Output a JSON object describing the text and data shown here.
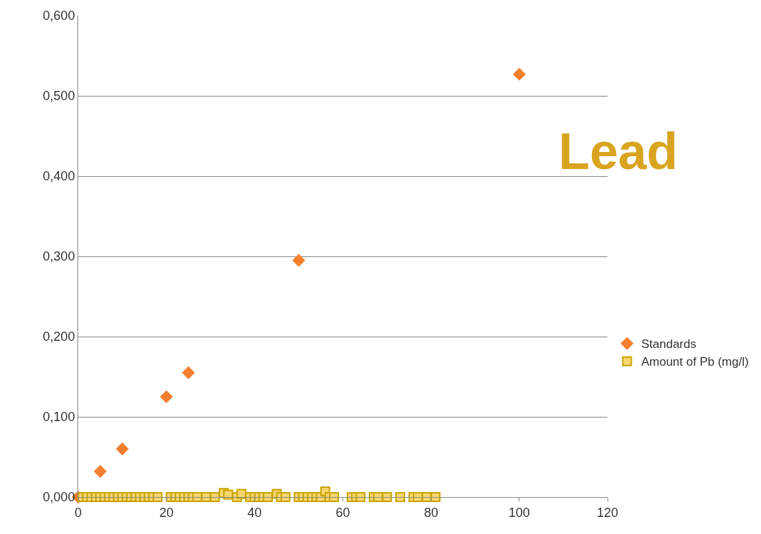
{
  "chart_data": {
    "type": "scatter",
    "annotations": [
      "Lead"
    ],
    "series": [
      {
        "name": "Standards",
        "color": "#f47f2c",
        "marker": "diamond",
        "x": [
          0,
          5,
          10,
          20,
          25,
          50,
          100
        ],
        "values": [
          0,
          0.032,
          0.06,
          0.125,
          0.155,
          0.295,
          0.527
        ]
      },
      {
        "name": "Amount of Pb (mg/l)",
        "color": "#f5d770",
        "marker": "square",
        "x": [
          1,
          2,
          3,
          4,
          5,
          6,
          7,
          8,
          9,
          10,
          11,
          12,
          13,
          14,
          15,
          16,
          17,
          18,
          21,
          22,
          23,
          24,
          25,
          26,
          27,
          29,
          31,
          33,
          34,
          36,
          37,
          39,
          40,
          41,
          42,
          43,
          45,
          46,
          47,
          50,
          51,
          52,
          53,
          54,
          55,
          56,
          57,
          58,
          62,
          63,
          64,
          67,
          68,
          70,
          73,
          76,
          77,
          79,
          81
        ],
        "values": [
          0,
          0,
          0,
          0,
          0,
          0,
          0,
          0,
          0,
          0,
          0,
          0,
          0,
          0,
          0,
          0,
          0,
          0,
          0,
          0,
          0,
          0,
          0,
          0,
          0,
          0,
          0,
          0.005,
          0.003,
          0,
          0.004,
          0,
          0,
          0,
          0,
          0,
          0.004,
          0,
          0,
          0,
          0,
          0,
          0,
          0,
          0,
          0.007,
          0,
          0,
          0,
          0,
          0,
          0,
          0,
          0,
          0,
          0,
          0,
          0,
          0
        ]
      }
    ],
    "xlim": [
      0,
      120
    ],
    "xticks": [
      0,
      20,
      40,
      60,
      80,
      100,
      120
    ],
    "ylim": [
      0,
      0.6
    ],
    "yticks": [
      {
        "value": 0,
        "label": "0,000"
      },
      {
        "value": 0.1,
        "label": "0,100"
      },
      {
        "value": 0.2,
        "label": "0,200"
      },
      {
        "value": 0.3,
        "label": "0,300"
      },
      {
        "value": 0.4,
        "label": "0,400"
      },
      {
        "value": 0.5,
        "label": "0,500"
      },
      {
        "value": 0.6,
        "label": "0,600"
      }
    ],
    "grid": "y",
    "legend": "right"
  }
}
